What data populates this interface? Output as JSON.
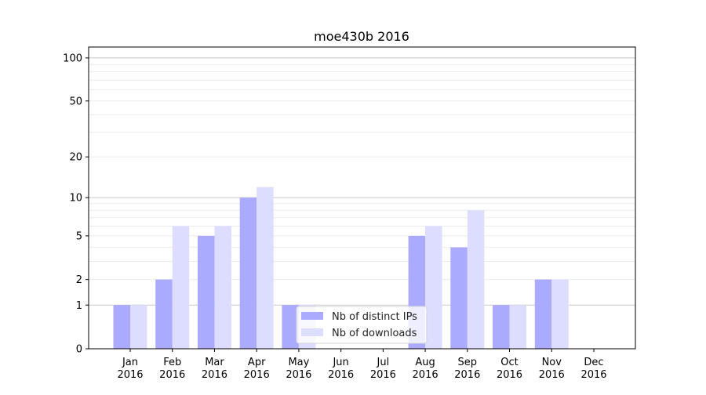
{
  "chart_data": {
    "type": "bar",
    "title": "moe430b 2016",
    "xlabel": "",
    "ylabel": "",
    "yscale": "symlog (log of 1+value)",
    "ylim": [
      0,
      119
    ],
    "yticks": [
      0,
      1,
      2,
      5,
      10,
      20,
      50,
      100
    ],
    "grid": true,
    "legend_position": "lower center",
    "categories": [
      "Jan\n2016",
      "Feb\n2016",
      "Mar\n2016",
      "Apr\n2016",
      "May\n2016",
      "Jun\n2016",
      "Jul\n2016",
      "Aug\n2016",
      "Sep\n2016",
      "Oct\n2016",
      "Nov\n2016",
      "Dec\n2016"
    ],
    "series": [
      {
        "name": "Nb of distinct IPs",
        "color": "#aaaaff",
        "values": [
          1,
          2,
          5,
          10,
          1,
          0,
          0,
          5,
          4,
          1,
          2,
          0
        ]
      },
      {
        "name": "Nb of downloads",
        "color": "#ddddff",
        "values": [
          1,
          6,
          6,
          12,
          1,
          0,
          0,
          6,
          8,
          1,
          2,
          0
        ]
      }
    ]
  }
}
